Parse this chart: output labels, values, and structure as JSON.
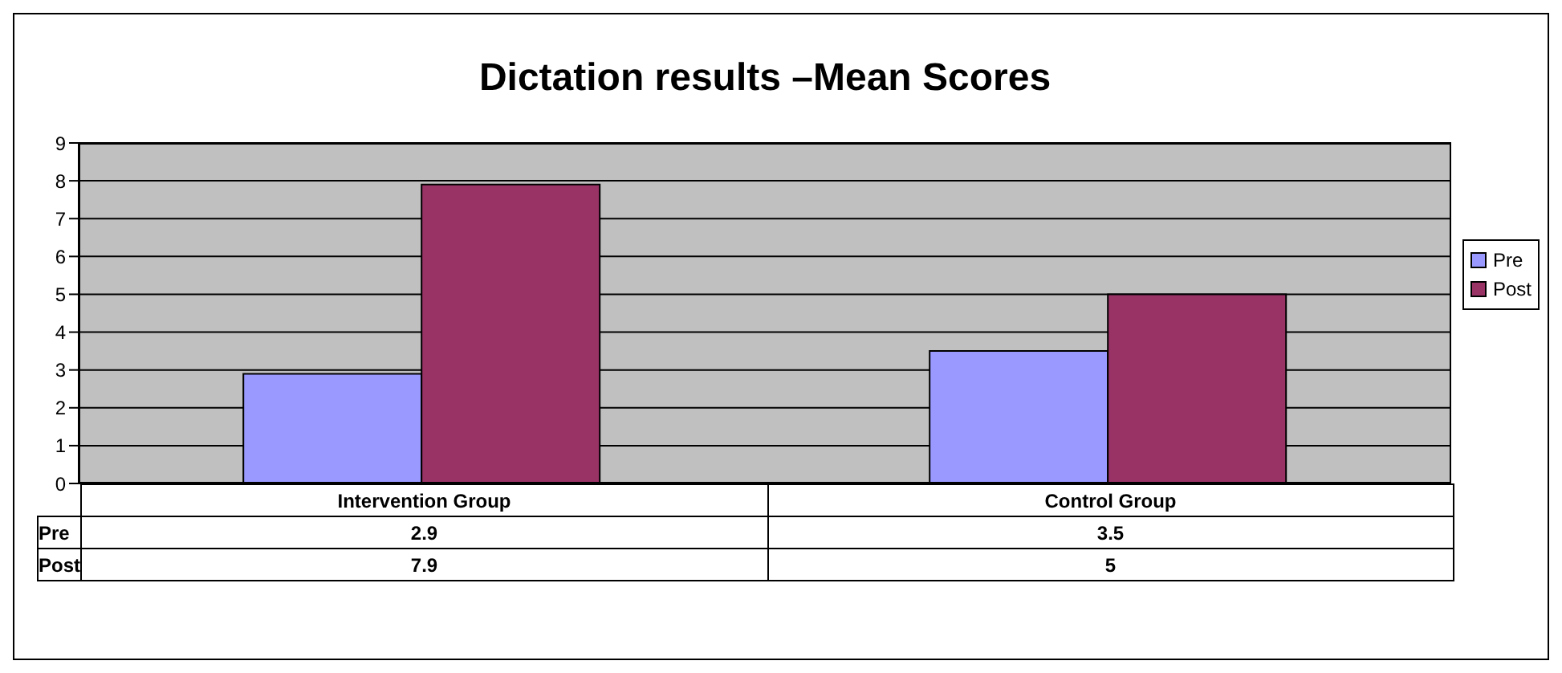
{
  "chart_data": {
    "type": "bar",
    "title": "Dictation results –Mean Scores",
    "categories": [
      "Intervention Group",
      "Control Group"
    ],
    "series": [
      {
        "name": "Pre",
        "color": "#9999ff",
        "values": [
          2.9,
          3.5
        ]
      },
      {
        "name": "Post",
        "color": "#993366",
        "values": [
          7.9,
          5
        ]
      }
    ],
    "ylim": [
      0,
      9
    ],
    "yticks": [
      0,
      1,
      2,
      3,
      4,
      5,
      6,
      7,
      8,
      9
    ],
    "grid": "y",
    "legend": "right",
    "data_labels": true
  }
}
